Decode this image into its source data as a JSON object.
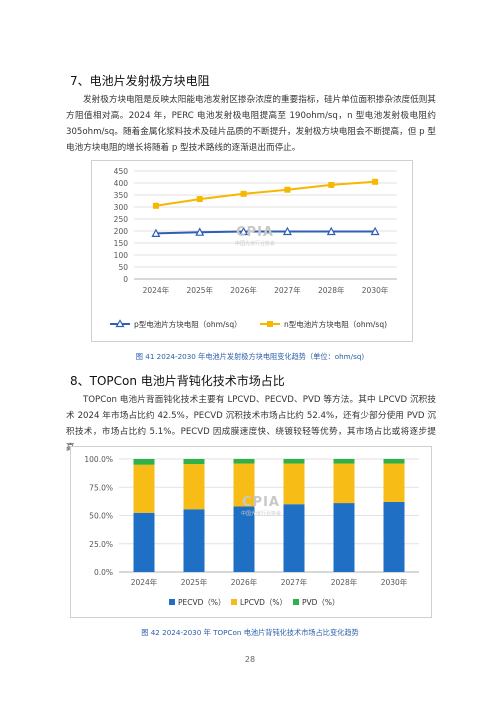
{
  "section7": {
    "title": "7、电池片发射极方块电阻",
    "paragraph": "发射极方块电阻是反映太阳能电池发射区掺杂浓度的重要指标，硅片单位面积掺杂浓度低则其方阻值相对高。2024 年，PERC 电池发射极电阻提高至 190ohm/sq，n 型电池发射极电阻约 305ohm/sq。随着金属化浆料技术及硅片品质的不断提升，发射极方块电阻会不断提高，但 p 型电池方块电阻的增长将随着 p 型技术路线的逐渐退出而停止。"
  },
  "section8": {
    "title": "8、TOPCon 电池片背钝化技术市场占比",
    "paragraph": "TOPCon 电池片背面钝化技术主要有 LPCVD、PECVD、PVD 等方法。其中 LPCVD 沉积技术 2024 年市场占比约 42.5%，PECVD 沉积技术市场占比约 52.4%，还有少部分使用 PVD 沉积技术，市场占比约 5.1%。PECVD 因成膜速度快、绕镀较轻等优势，其市场占比或将逐步提高。"
  },
  "watermark": {
    "text": "CPIA",
    "subtext": "中国光伏行业协会"
  },
  "page_number": "28",
  "colors": {
    "p_series": "#2e5fb5",
    "n_series": "#f5b800",
    "pecvd": "#1f6fc5",
    "lpcvd": "#f7bd16",
    "pvd": "#2fb14a",
    "caption": "#2a5caa"
  },
  "chart_data": [
    {
      "type": "line",
      "categories": [
        "2024年",
        "2025年",
        "2026年",
        "2027年",
        "2028年",
        "2030年"
      ],
      "series": [
        {
          "name": "p型电池片方块电阻（ohm/sq）",
          "values": [
            190,
            195,
            198,
            198,
            198,
            198
          ],
          "marker": "triangle"
        },
        {
          "name": "n型电池片方块电阻（ohm/sq)",
          "values": [
            305,
            333,
            355,
            372,
            392,
            405
          ],
          "marker": "square"
        }
      ],
      "ylim": [
        0,
        450
      ],
      "yticks": [
        "0",
        "50",
        "100",
        "150",
        "200",
        "250",
        "300",
        "350",
        "400",
        "450"
      ],
      "grid": true,
      "legend_position": "bottom",
      "caption": "图 41   2024-2030 年电池片发射极方块电阻变化趋势（单位：ohm/sq)"
    },
    {
      "type": "bar",
      "stacked": true,
      "categories": [
        "2024年",
        "2025年",
        "2026年",
        "2027年",
        "2028年",
        "2030年"
      ],
      "series": [
        {
          "name": "PECVD（%）",
          "values": [
            52.4,
            55.5,
            58.0,
            60.0,
            61.0,
            62.0
          ]
        },
        {
          "name": "LPCVD（%）",
          "values": [
            42.5,
            40.0,
            38.0,
            36.0,
            35.0,
            34.0
          ]
        },
        {
          "name": "PVD（%）",
          "values": [
            5.1,
            4.5,
            4.0,
            4.0,
            4.0,
            4.0
          ]
        }
      ],
      "ylim": [
        0,
        100
      ],
      "yticks": [
        "0.0%",
        "25.0%",
        "50.0%",
        "75.0%",
        "100.0%"
      ],
      "grid": true,
      "legend_position": "bottom",
      "caption": "图 42   2024-2030 年 TOPCon 电池片背钝化技术市场占比变化趋势"
    }
  ]
}
